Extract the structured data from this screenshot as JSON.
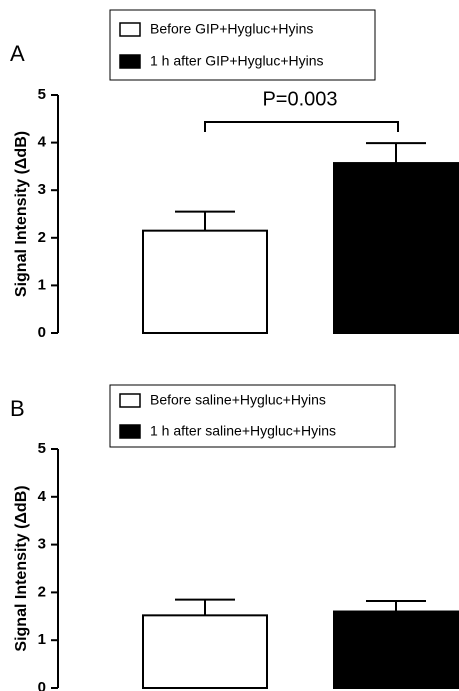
{
  "chart_data": [
    {
      "type": "bar",
      "panel_label": "A",
      "y_label": "Signal Intensity (ΔdB)",
      "annotation": "P=0.003",
      "ylim": [
        0,
        5
      ],
      "yticks": [
        0,
        1,
        2,
        3,
        4,
        5
      ],
      "series": [
        {
          "name": "Before GIP+Hygluc+Hyins",
          "color": "#ffffff",
          "values": [
            2.15
          ],
          "errors": [
            0.4
          ]
        },
        {
          "name": "1 h after GIP+Hygluc+Hyins",
          "color": "#000000",
          "values": [
            3.57
          ],
          "errors": [
            0.42
          ]
        }
      ]
    },
    {
      "type": "bar",
      "panel_label": "B",
      "y_label": "Signal Intensity (ΔdB)",
      "ylim": [
        0,
        5
      ],
      "yticks": [
        0,
        1,
        2,
        3,
        4,
        5
      ],
      "series": [
        {
          "name": "Before saline+Hygluc+Hyins",
          "color": "#ffffff",
          "values": [
            1.52
          ],
          "errors": [
            0.33
          ]
        },
        {
          "name": "1 h after saline+Hygluc+Hyins",
          "color": "#000000",
          "values": [
            1.6
          ],
          "errors": [
            0.22
          ]
        }
      ]
    }
  ]
}
